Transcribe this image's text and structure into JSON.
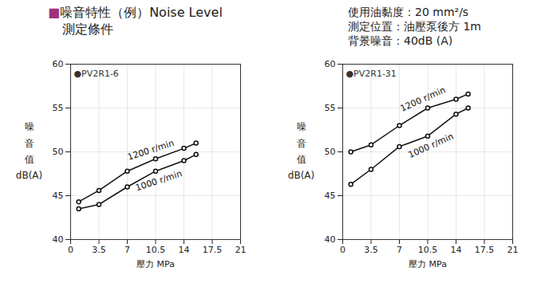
{
  "header": {
    "title": "■噪音特性（例）Noise Level",
    "subtitle": "測定條件",
    "conditions": [
      "使用油黏度：20 mm²/s",
      "測定位置：油壓泵後方 1m",
      "背景噪音：40dB (A)"
    ]
  },
  "chart_data": [
    {
      "type": "line",
      "title": "●PV2R1-6",
      "x_label": "壓力 MPa",
      "y_label": "噪音值 dB(A)",
      "x": [
        1,
        3.5,
        7,
        10.5,
        14,
        15.5
      ],
      "series": [
        {
          "name": "1200 r/min",
          "color": "#111111",
          "marker": "circle",
          "line_style": "solid",
          "values": [
            44.3,
            45.6,
            47.8,
            49.2,
            50.4,
            51.0
          ]
        },
        {
          "name": "1000 r/min",
          "color": "#111111",
          "marker": "circle",
          "line_style": "solid",
          "values": [
            43.5,
            44.0,
            46.0,
            47.8,
            49.0,
            49.7
          ]
        }
      ],
      "xlim": [
        0,
        21
      ],
      "xticks": [
        0,
        3.5,
        7,
        10.5,
        14,
        17.5,
        21
      ],
      "ylim": [
        40,
        60
      ],
      "yticks": [
        40,
        45,
        50,
        55,
        60
      ],
      "grid": true
    },
    {
      "type": "line",
      "title": "●PV2R1-31",
      "x_label": "壓力 MPa",
      "y_label": "噪音值 dB(A)",
      "x": [
        1,
        3.5,
        7,
        10.5,
        14,
        15.5
      ],
      "series": [
        {
          "name": "1200 r/min",
          "color": "#111111",
          "marker": "circle",
          "line_style": "solid",
          "values": [
            50.0,
            50.8,
            53.0,
            55.0,
            56.0,
            56.6
          ]
        },
        {
          "name": "1000 r/min",
          "color": "#111111",
          "marker": "circle",
          "line_style": "solid",
          "values": [
            46.3,
            48.0,
            50.6,
            51.8,
            54.3,
            55.0
          ]
        }
      ],
      "xlim": [
        0,
        21
      ],
      "xticks": [
        0,
        3.5,
        7,
        10.5,
        14,
        17.5,
        21
      ],
      "ylim": [
        40,
        60
      ],
      "yticks": [
        40,
        45,
        50,
        55,
        60
      ],
      "grid": true
    }
  ]
}
